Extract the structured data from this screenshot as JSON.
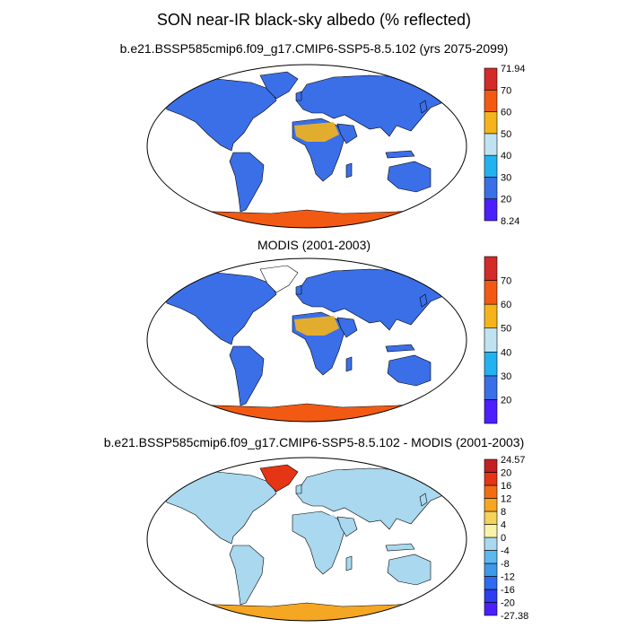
{
  "figure": {
    "title": "SON near-IR black-sky albedo (% reflected)"
  },
  "panels": [
    {
      "title": "b.e21.BSSP585cmip6.f09_g17.CMIP6-SSP5-8.5.102 (yrs 2075-2099)",
      "colorbar": {
        "colors": [
          "#4b1fff",
          "#3b6fe8",
          "#23b2f0",
          "#bfe3f2",
          "#f5b41b",
          "#f25a14",
          "#d32a2a"
        ],
        "labels": [
          "8.24",
          "20",
          "30",
          "40",
          "50",
          "60",
          "70",
          "71.94"
        ],
        "label_mode": "edges"
      },
      "ocean_color": "#ffffff",
      "land_color": "#3b6fe8",
      "antarctica_color": "#f25a14",
      "greenland_color": "#3b6fe8",
      "sahara_color": "#f5b41b"
    },
    {
      "title": "MODIS (2001-2003)",
      "colorbar": {
        "colors": [
          "#4b1fff",
          "#3b6fe8",
          "#23b2f0",
          "#bfe3f2",
          "#f5b41b",
          "#f25a14",
          "#d32a2a"
        ],
        "labels": [
          "20",
          "30",
          "40",
          "50",
          "60",
          "70"
        ],
        "label_mode": "inner"
      },
      "ocean_color": "#ffffff",
      "land_color": "#3b6fe8",
      "antarctica_color": "#f25a14",
      "greenland_color": "#ffffff",
      "sahara_color": "#f5b41b"
    },
    {
      "title": "b.e21.BSSP585cmip6.f09_g17.CMIP6-SSP5-8.5.102 - MODIS (2001-2003)",
      "colorbar": {
        "colors": [
          "#4b1fff",
          "#2c3df2",
          "#2f6bee",
          "#3d9ae8",
          "#5cb8f0",
          "#a9d8ef",
          "#f8f3a8",
          "#f5d25a",
          "#f5a623",
          "#f26d12",
          "#e53514",
          "#c42022"
        ],
        "labels": [
          "-27.38",
          "-20",
          "-16",
          "-12",
          "-8",
          "-4",
          "0",
          "4",
          "8",
          "12",
          "16",
          "20",
          "24.57"
        ],
        "label_mode": "edges"
      },
      "ocean_color": "#ffffff",
      "land_color": "#a9d8ef",
      "antarctica_color": "#f5a623",
      "greenland_color": "#e53514",
      "sahara_color": "#a9d8ef"
    }
  ]
}
